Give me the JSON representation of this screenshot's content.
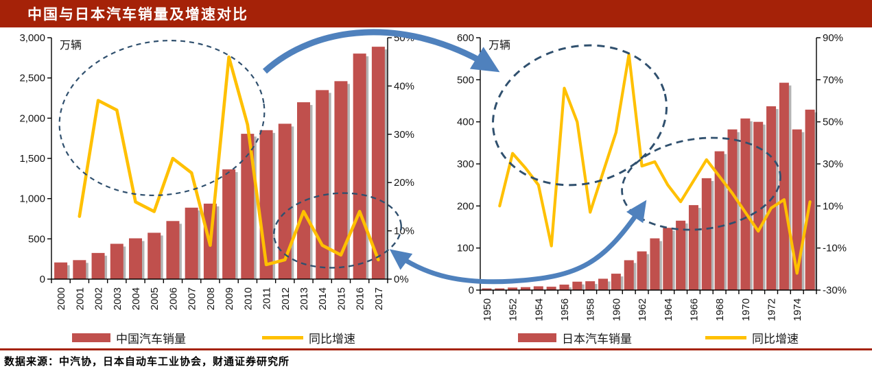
{
  "title": "中国与日本汽车销量及增速对比",
  "source": "数据来源：中汽协，日本自动车工业协会，财通证券研究所",
  "colors": {
    "title_bar": "#A52208",
    "bar": "#C0504D",
    "bar_shadow": "#B4B4B4",
    "line": "#FFC000",
    "arrow": "#4F81BD",
    "ellipse": "#30506E",
    "axis": "#000000"
  },
  "charts": [
    {
      "name": "china-auto-sales",
      "chart_data": {
        "type": "combo",
        "categories": [
          2000,
          2001,
          2002,
          2003,
          2004,
          2005,
          2006,
          2007,
          2008,
          2009,
          2010,
          2011,
          2012,
          2013,
          2014,
          2015,
          2016,
          2017
        ],
        "series": [
          {
            "name": "中国汽车销量",
            "type": "bar",
            "axis": "left",
            "values": [
              207,
              236,
              325,
              439,
              507,
              576,
              722,
              888,
              938,
              1364,
              1806,
              1851,
              1931,
              2198,
              2349,
              2460,
              2803,
              2888
            ]
          },
          {
            "name": "同比增速",
            "type": "line",
            "axis": "right",
            "values": [
              null,
              13,
              37,
              35,
              16,
              14,
              25,
              22,
              7,
              46,
              32,
              3,
              4,
              14,
              7,
              5,
              14,
              4
            ]
          }
        ],
        "left_axis": {
          "title": "万辆",
          "min": 0,
          "max": 3000,
          "step": 500,
          "format": "thousands"
        },
        "right_axis": {
          "min": 0,
          "max": 50,
          "step": 10,
          "format": "percent"
        },
        "x_label_every": 1,
        "grid": false,
        "legend_position": "bottom"
      }
    },
    {
      "name": "japan-auto-sales",
      "chart_data": {
        "type": "combo",
        "categories": [
          1950,
          1951,
          1952,
          1953,
          1954,
          1955,
          1956,
          1957,
          1958,
          1959,
          1960,
          1961,
          1962,
          1963,
          1964,
          1965,
          1966,
          1967,
          1968,
          1969,
          1970,
          1971,
          1972,
          1973,
          1974,
          1975
        ],
        "series": [
          {
            "name": "日本汽车销量",
            "type": "bar",
            "axis": "left",
            "values": [
              4,
              4,
              6,
              7,
              9,
              8,
              13,
              20,
              21,
              27,
              39,
              71,
              92,
              123,
              148,
              165,
              202,
              266,
              330,
              382,
              408,
              400,
              437,
              493,
              382,
              429
            ]
          },
          {
            "name": "同比增速",
            "type": "line",
            "axis": "right",
            "values": [
              null,
              10,
              35,
              28,
              20,
              -9,
              66,
              50,
              7,
              26,
              45,
              82,
              29,
              31,
              20,
              12,
              22,
              32,
              24,
              16,
              7,
              -2,
              9,
              13,
              -22,
              12
            ]
          }
        ],
        "left_axis": {
          "title": "万辆",
          "min": 0,
          "max": 600,
          "step": 100,
          "format": "plain"
        },
        "right_axis": {
          "min": -30,
          "max": 90,
          "step": 20,
          "format": "percent"
        },
        "x_label_every": 2,
        "grid": false,
        "legend_position": "bottom"
      }
    }
  ]
}
